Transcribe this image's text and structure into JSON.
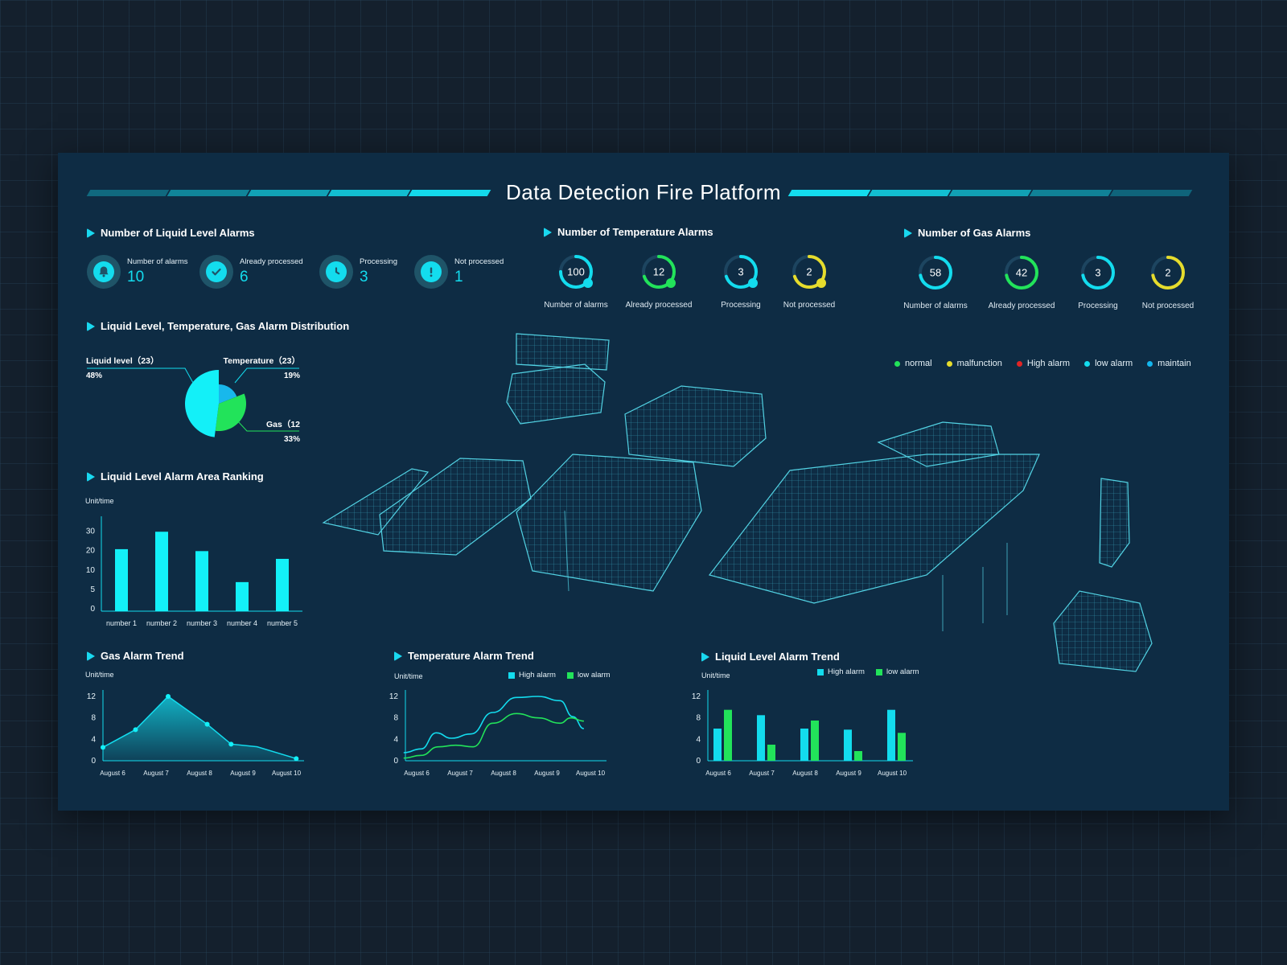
{
  "header": {
    "title": "Data Detection Fire Platform"
  },
  "colors": {
    "accent": "#13dcee",
    "green": "#22e35a",
    "yellow": "#e6dc2c",
    "red": "#e02424",
    "panel": "#0e2c44"
  },
  "liquid_alarms": {
    "title": "Number of Liquid Level Alarms",
    "items": [
      {
        "label": "Number of alarms",
        "value": "10",
        "icon": "bell-icon"
      },
      {
        "label": "Already processed",
        "value": "6",
        "icon": "check-icon"
      },
      {
        "label": "Processing",
        "value": "3",
        "icon": "clock-icon"
      },
      {
        "label": "Not processed",
        "value": "1",
        "icon": "exclamation-icon"
      }
    ]
  },
  "temperature_alarms": {
    "title": "Number of Temperature Alarms",
    "items": [
      {
        "label": "Number of alarms",
        "value": "100",
        "color": "#13dcee",
        "fraction": 0.75
      },
      {
        "label": "Already processed",
        "value": "12",
        "color": "#22e35a",
        "fraction": 0.7
      },
      {
        "label": "Processing",
        "value": "3",
        "color": "#13dcee",
        "fraction": 0.7
      },
      {
        "label": "Not processed",
        "value": "2",
        "color": "#e6dc2c",
        "fraction": 0.7
      }
    ]
  },
  "gas_alarms": {
    "title": "Number of Gas Alarms",
    "items": [
      {
        "label": "Number of alarms",
        "value": "58",
        "color": "#13dcee",
        "fraction": 0.72
      },
      {
        "label": "Already processed",
        "value": "42",
        "color": "#22e35a",
        "fraction": 0.72
      },
      {
        "label": "Processing",
        "value": "3",
        "color": "#13dcee",
        "fraction": 0.72
      },
      {
        "label": "Not processed",
        "value": "2",
        "color": "#e6dc2c",
        "fraction": 0.72
      }
    ]
  },
  "distribution": {
    "title": "Liquid Level, Temperature, Gas Alarm Distribution",
    "liquid_label": "Liquid level（23）",
    "liquid_pct": "48%",
    "temp_label": "Temperature（23）",
    "temp_pct": "19%",
    "gas_label": "Gas（12",
    "gas_pct": "33%"
  },
  "status_legend": [
    {
      "label": "normal",
      "color": "#22e35a"
    },
    {
      "label": "malfunction",
      "color": "#e6dc2c"
    },
    {
      "label": "High alarm",
      "color": "#e02424"
    },
    {
      "label": "low alarm",
      "color": "#13dcee"
    },
    {
      "label": "maintain",
      "color": "#13b6ee"
    }
  ],
  "ranking": {
    "title": "Liquid Level Alarm Area Ranking",
    "unit": "Unit/time"
  },
  "gas_trend": {
    "title": "Gas Alarm Trend",
    "unit": "Unit/time"
  },
  "temp_trend": {
    "title": "Temperature Alarm Trend",
    "unit": "Unit/time",
    "key_high": "High alarm",
    "key_low": "low alarm"
  },
  "liquid_trend": {
    "title": "Liquid Level Alarm Trend",
    "unit": "Unit/time",
    "key_high": "High alarm",
    "key_low": "low alarm"
  },
  "chart_data": [
    {
      "type": "pie",
      "title": "Liquid Level, Temperature, Gas Alarm Distribution",
      "slices": [
        {
          "name": "Liquid level",
          "count": 23,
          "percent": 48,
          "color": "#13f0f8"
        },
        {
          "name": "Temperature",
          "count": 23,
          "percent": 19,
          "color": "#18b8ec"
        },
        {
          "name": "Gas",
          "count": 12,
          "percent": 33,
          "color": "#22e35a"
        }
      ]
    },
    {
      "type": "bar",
      "title": "Liquid Level Alarm Area Ranking",
      "ylabel": "Unit/time",
      "categories": [
        "number 1",
        "number 2",
        "number 3",
        "number 4",
        "number 5"
      ],
      "values": [
        16,
        20.5,
        15.5,
        7.5,
        13.5
      ],
      "yticks": [
        "0",
        "5",
        "10",
        "20",
        "30"
      ],
      "ylim": [
        0,
        22
      ]
    },
    {
      "type": "area",
      "title": "Gas Alarm Trend",
      "ylabel": "Unit/time",
      "categories": [
        "August 6",
        "August 7",
        "August 8",
        "August 9",
        "August 10"
      ],
      "yticks": [
        "0",
        "4",
        "8",
        "12"
      ],
      "ylim": [
        0,
        12
      ],
      "points": [
        {
          "x": 0,
          "y": 2.5
        },
        {
          "x": 0.75,
          "y": 5.8
        },
        {
          "x": 1.5,
          "y": 12
        },
        {
          "x": 2.4,
          "y": 6.8
        },
        {
          "x": 2.95,
          "y": 3.1
        },
        {
          "x": 3.55,
          "y": 2.6
        },
        {
          "x": 4.45,
          "y": 0.4
        }
      ]
    },
    {
      "type": "line",
      "title": "Temperature Alarm Trend",
      "ylabel": "Unit/time",
      "categories": [
        "August 6",
        "August 7",
        "August 8",
        "August 9",
        "August 10"
      ],
      "yticks": [
        "0",
        "4",
        "8",
        "12"
      ],
      "ylim": [
        0,
        12
      ],
      "series": [
        {
          "name": "High alarm",
          "color": "#13dcee",
          "points": [
            [
              -0.3,
              1.5
            ],
            [
              0.1,
              2.2
            ],
            [
              0.45,
              5.2
            ],
            [
              0.8,
              4.2
            ],
            [
              1.25,
              5
            ],
            [
              1.75,
              9
            ],
            [
              2.3,
              11.8
            ],
            [
              2.8,
              12
            ],
            [
              3.3,
              11.2
            ],
            [
              3.6,
              8.2
            ],
            [
              3.85,
              6
            ]
          ]
        },
        {
          "name": "low alarm",
          "color": "#22e35a",
          "points": [
            [
              -0.3,
              0.5
            ],
            [
              0.1,
              1
            ],
            [
              0.5,
              2.6
            ],
            [
              0.9,
              2.9
            ],
            [
              1.3,
              2.6
            ],
            [
              1.75,
              7
            ],
            [
              2.3,
              8.8
            ],
            [
              2.8,
              8
            ],
            [
              3.3,
              7
            ],
            [
              3.55,
              8
            ],
            [
              3.85,
              7.4
            ]
          ]
        }
      ]
    },
    {
      "type": "bar",
      "title": "Liquid Level Alarm Trend",
      "ylabel": "Unit/time",
      "categories": [
        "August 6",
        "August 7",
        "August 8",
        "August 9",
        "August 10"
      ],
      "yticks": [
        "0",
        "4",
        "8",
        "12"
      ],
      "ylim": [
        0,
        12
      ],
      "series": [
        {
          "name": "High alarm",
          "color": "#13dcee",
          "values": [
            6,
            8.5,
            6,
            5.8,
            9.5
          ]
        },
        {
          "name": "low alarm",
          "color": "#22e35a",
          "values": [
            9.5,
            3,
            7.5,
            1.8,
            5.2
          ]
        }
      ]
    }
  ]
}
